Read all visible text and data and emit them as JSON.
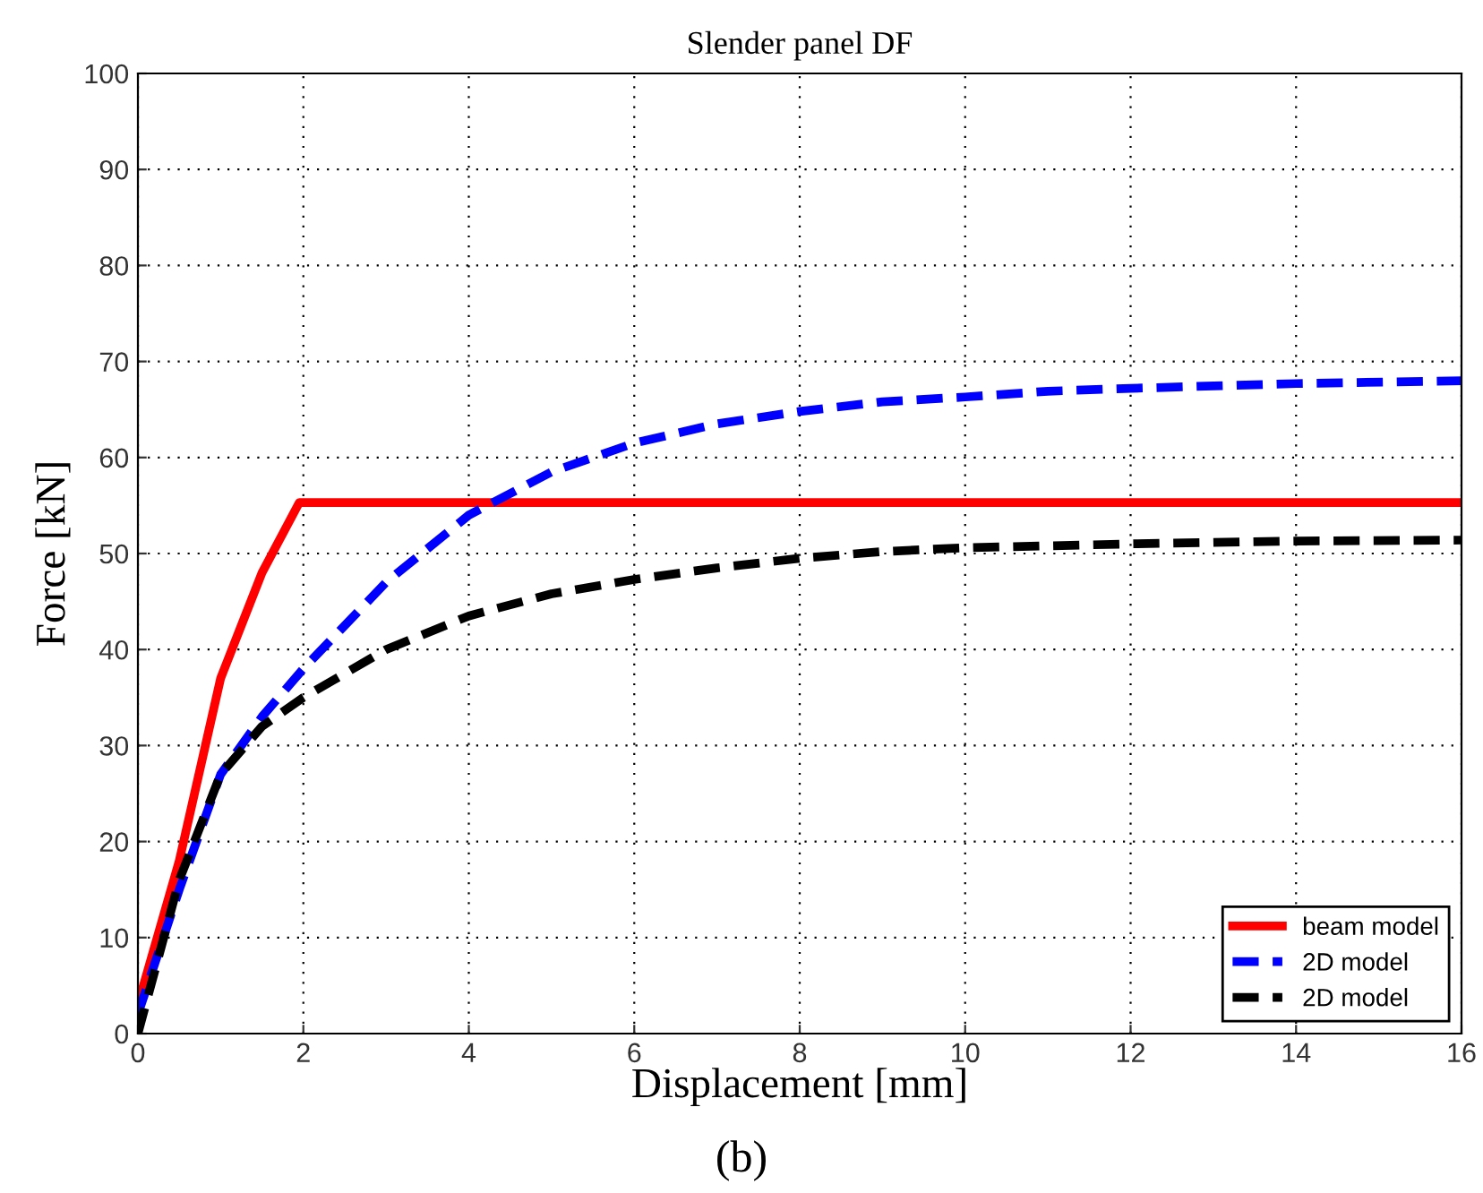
{
  "chart_data": {
    "type": "line",
    "title": "Slender panel DF",
    "xlabel": "Displacement [mm]",
    "ylabel": "Force [kN]",
    "annotations": [
      "(b)"
    ],
    "xlim": [
      0,
      16
    ],
    "xticks": [
      0,
      2,
      4,
      6,
      8,
      10,
      12,
      14,
      16
    ],
    "ylim": [
      0,
      100
    ],
    "yticks": [
      0,
      10,
      20,
      30,
      40,
      50,
      60,
      70,
      80,
      90,
      100
    ],
    "grid": true,
    "legend": "bottom right",
    "series": [
      {
        "name": "beam model",
        "color": "#ff0000",
        "line_style": "solid",
        "x": [
          0,
          0.5,
          1,
          1.5,
          1.95,
          16
        ],
        "values": [
          3,
          18,
          37,
          48,
          55.3,
          55.3
        ]
      },
      {
        "name": "2D model",
        "color": "#0000ff",
        "line_style": "dashed",
        "x": [
          0,
          0.5,
          1,
          1.5,
          2,
          3,
          4,
          5,
          6,
          7,
          8,
          9,
          10,
          11,
          12,
          14,
          16
        ],
        "values": [
          2,
          15,
          27,
          33,
          38,
          47,
          54,
          58.5,
          61.5,
          63.5,
          64.8,
          65.8,
          66.3,
          66.9,
          67.2,
          67.7,
          68
        ]
      },
      {
        "name": "2D model",
        "color": "#000000",
        "line_style": "dashed",
        "x": [
          0,
          0.5,
          1,
          1.5,
          2,
          3,
          4,
          5,
          6,
          7,
          8,
          9,
          10,
          12,
          14,
          16
        ],
        "values": [
          0,
          16,
          27,
          32,
          35,
          40,
          43.5,
          45.8,
          47.3,
          48.5,
          49.5,
          50.2,
          50.6,
          51,
          51.3,
          51.4
        ]
      }
    ]
  }
}
